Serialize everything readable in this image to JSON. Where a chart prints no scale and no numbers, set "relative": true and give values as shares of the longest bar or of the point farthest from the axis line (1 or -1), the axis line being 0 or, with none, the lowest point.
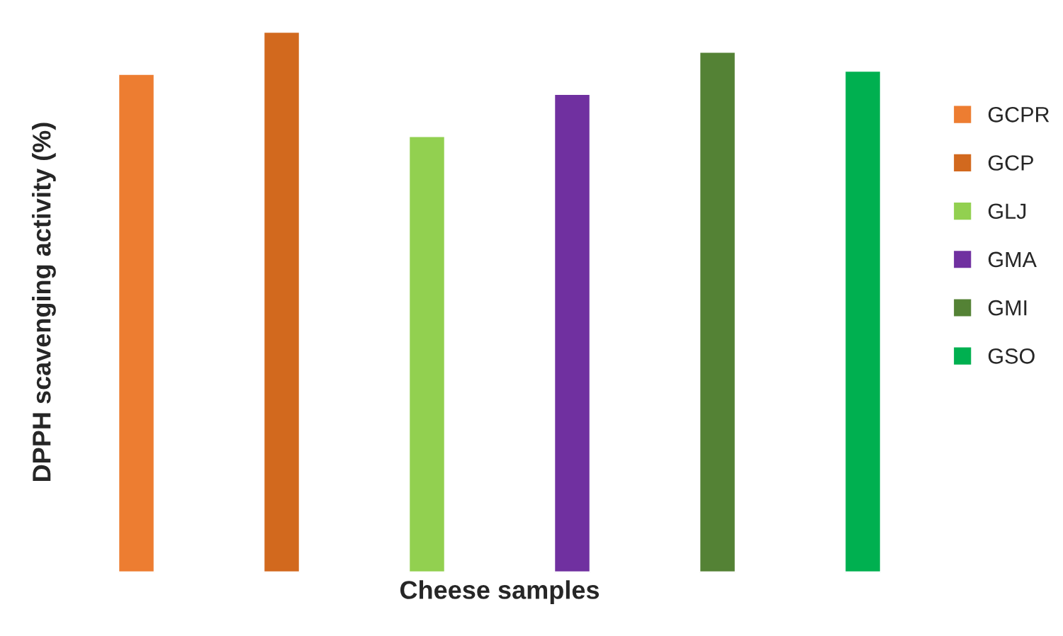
{
  "chart_data": {
    "type": "bar",
    "relative": true,
    "stacked": true,
    "xlabel": "Cheese samples",
    "ylabel": "DPPH scavenging activity (%)",
    "legend": "right",
    "grid": false,
    "tick_labels": false,
    "categories": [
      null,
      null,
      null,
      null,
      null,
      null
    ],
    "series": [
      {
        "name": "GCPR",
        "color": "#ed7d31",
        "values": [
          0.922,
          null,
          null,
          null,
          null,
          null
        ]
      },
      {
        "name": "GCP",
        "color": "#d2691e",
        "values": [
          null,
          1,
          null,
          null,
          null,
          null
        ]
      },
      {
        "name": "GLJ",
        "color": "#92d050",
        "values": [
          null,
          null,
          0.807,
          null,
          null,
          null
        ]
      },
      {
        "name": "GMA",
        "color": "#7030a0",
        "values": [
          null,
          null,
          null,
          0.885,
          null,
          null
        ]
      },
      {
        "name": "GMI",
        "color": "#548235",
        "values": [
          null,
          null,
          null,
          null,
          0.963,
          null
        ]
      },
      {
        "name": "GSO",
        "color": "#00b050",
        "values": [
          null,
          null,
          null,
          null,
          null,
          0.928
        ]
      }
    ]
  }
}
